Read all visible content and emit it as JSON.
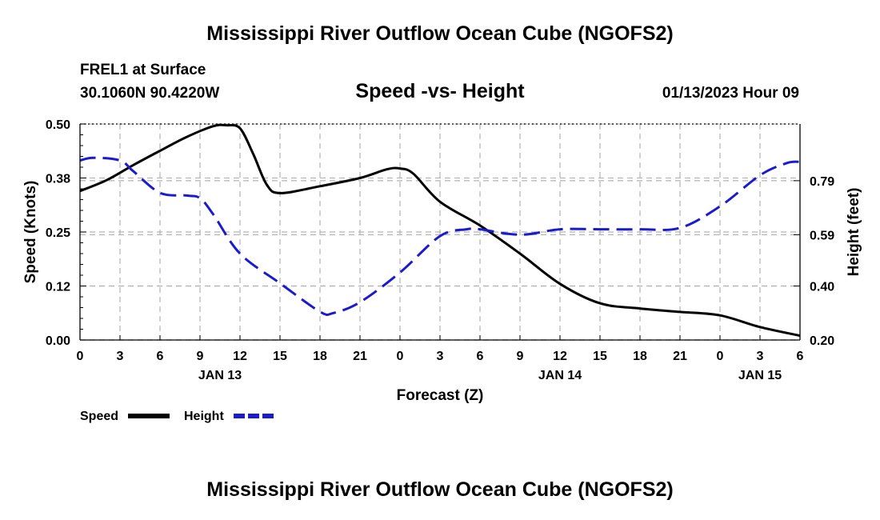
{
  "header": {
    "title": "Mississippi River Outflow Ocean Cube (NGOFS2)",
    "station": "FREL1 at Surface",
    "coords": "30.1060N  90.4220W",
    "timestamp": "01/13/2023 Hour 09"
  },
  "footer": {
    "title": "Mississippi River Outflow Ocean Cube (NGOFS2)"
  },
  "colors": {
    "speed": "#000000",
    "height": "#1a1ad0",
    "grid": "#b4b4b4"
  },
  "chart_data": {
    "type": "line",
    "title": "Speed -vs- Height",
    "xlabel": "Forecast (Z)",
    "ylabel": "Speed (Knots)",
    "y2label": "Height (feet)",
    "xlim": [
      0,
      54
    ],
    "ylim": [
      0,
      0.5
    ],
    "y2lim": [
      0.2,
      1.0
    ],
    "x_ticks": [
      0,
      3,
      6,
      9,
      12,
      15,
      18,
      21,
      24,
      27,
      30,
      33,
      36,
      39,
      42,
      45,
      48,
      51,
      54
    ],
    "x_tick_labels": [
      "0",
      "3",
      "6",
      "9",
      "12",
      "15",
      "18",
      "21",
      "0",
      "3",
      "6",
      "9",
      "12",
      "15",
      "18",
      "21",
      "0",
      "3",
      "6"
    ],
    "y_ticks": [
      0,
      0.125,
      0.25,
      0.375,
      0.5
    ],
    "y_tick_labels": [
      "0.00",
      "0.12",
      "0.25",
      "0.38",
      "0.50"
    ],
    "y2_ticks": [
      0.2,
      0.4,
      0.59,
      0.79
    ],
    "y2_tick_labels": [
      "0.20",
      "0.40",
      "0.59",
      "0.79"
    ],
    "date_labels": [
      {
        "x": 10.5,
        "label": "JAN 13"
      },
      {
        "x": 36,
        "label": "JAN 14"
      },
      {
        "x": 51,
        "label": "JAN 15"
      }
    ],
    "series": [
      {
        "name": "Speed",
        "axis": "left",
        "style": "solid",
        "x": [
          0,
          2,
          4,
          6,
          8,
          10,
          11,
          12,
          13,
          14,
          15,
          18,
          21,
          23,
          24,
          25,
          27,
          30,
          33,
          36,
          39,
          42,
          45,
          48,
          51,
          54
        ],
        "values": [
          0.345,
          0.37,
          0.405,
          0.438,
          0.47,
          0.495,
          0.497,
          0.49,
          0.43,
          0.36,
          0.34,
          0.356,
          0.375,
          0.395,
          0.397,
          0.385,
          0.32,
          0.265,
          0.2,
          0.13,
          0.085,
          0.073,
          0.065,
          0.057,
          0.03,
          0.01
        ]
      },
      {
        "name": "Height",
        "axis": "right",
        "style": "dashed",
        "x": [
          0,
          1,
          3,
          4,
          6,
          8,
          9,
          10,
          12,
          15,
          18,
          19,
          21,
          24,
          27,
          29,
          30,
          33,
          36,
          39,
          42,
          45,
          48,
          51,
          53,
          54
        ],
        "values": [
          0.865,
          0.875,
          0.865,
          0.825,
          0.745,
          0.735,
          0.725,
          0.665,
          0.52,
          0.41,
          0.305,
          0.3,
          0.34,
          0.45,
          0.585,
          0.61,
          0.61,
          0.59,
          0.61,
          0.61,
          0.61,
          0.615,
          0.695,
          0.81,
          0.855,
          0.86
        ]
      }
    ],
    "legend": [
      {
        "label": "Speed",
        "series": "Speed"
      },
      {
        "label": "Height",
        "series": "Height"
      }
    ]
  }
}
